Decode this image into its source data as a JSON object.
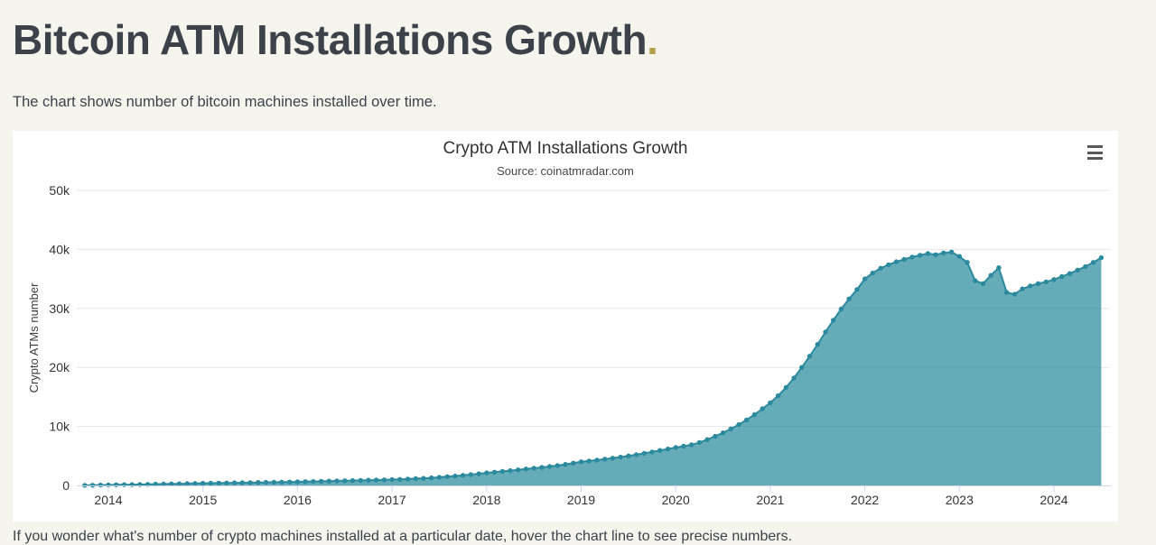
{
  "page": {
    "title": "Bitcoin ATM Installations Growth",
    "title_accent": ".",
    "subtitle": "The chart shows number of bitcoin machines installed over time.",
    "footer_text": "If you wonder what's number of crypto machines installed at a particular date, hover the chart line to see precise numbers.",
    "background_color": "#f5f5ee",
    "accent_color": "#b3a24b"
  },
  "chart": {
    "context_menu_icon": "hamburger-icon"
  },
  "chart_data": {
    "type": "area",
    "title": "Crypto ATM Installations Growth",
    "subtitle": "Source: coinatmradar.com",
    "xlabel": "",
    "ylabel": "Crypto ATMs number",
    "ylim": [
      0,
      50000
    ],
    "y_tick_labels": [
      "0",
      "10k",
      "20k",
      "30k",
      "40k",
      "50k"
    ],
    "x_tick_labels": [
      "2014",
      "2015",
      "2016",
      "2017",
      "2018",
      "2019",
      "2020",
      "2021",
      "2022",
      "2023",
      "2024"
    ],
    "x_start_year": 2013.75,
    "frequency": "monthly",
    "x_range_note": "monthly points from Oct 2013 to Jun 2024",
    "grid": true,
    "legend": false,
    "line_color": "#2b8a9d",
    "fill_color": "rgba(43,138,157,0.72)",
    "grid_color": "#e6e6e6",
    "axis_line_color": "#ccd6eb",
    "unit": "thousands of ATMs",
    "series": [
      {
        "name": "Crypto ATMs number",
        "values_thousands": [
          0.01,
          0.03,
          0.06,
          0.08,
          0.1,
          0.12,
          0.14,
          0.16,
          0.18,
          0.21,
          0.23,
          0.26,
          0.28,
          0.31,
          0.34,
          0.36,
          0.38,
          0.4,
          0.42,
          0.44,
          0.46,
          0.48,
          0.5,
          0.52,
          0.54,
          0.56,
          0.58,
          0.61,
          0.64,
          0.67,
          0.7,
          0.73,
          0.76,
          0.79,
          0.82,
          0.85,
          0.88,
          0.91,
          0.95,
          0.99,
          1.03,
          1.08,
          1.14,
          1.21,
          1.29,
          1.38,
          1.48,
          1.59,
          1.71,
          1.84,
          1.98,
          2.12,
          2.25,
          2.38,
          2.51,
          2.64,
          2.78,
          2.92,
          3.06,
          3.21,
          3.37,
          3.57,
          3.78,
          4.0,
          4.15,
          4.3,
          4.46,
          4.62,
          4.8,
          5.0,
          5.21,
          5.44,
          5.68,
          5.93,
          6.18,
          6.42,
          6.65,
          6.9,
          7.28,
          7.76,
          8.32,
          8.92,
          9.58,
          10.3,
          11.1,
          12.0,
          13.0,
          14.0,
          15.2,
          16.6,
          18.2,
          20.0,
          21.9,
          23.9,
          26.0,
          28.0,
          29.9,
          31.6,
          33.2,
          35.0,
          36.0,
          36.8,
          37.4,
          37.9,
          38.3,
          38.7,
          39.0,
          39.3,
          39.1,
          39.4,
          39.55,
          38.8,
          37.8,
          34.7,
          34.2,
          35.6,
          36.9,
          32.7,
          32.4,
          33.3,
          33.8,
          34.2,
          34.5,
          34.9,
          35.4,
          35.9,
          36.5,
          37.1,
          37.8,
          38.6
        ]
      }
    ]
  }
}
